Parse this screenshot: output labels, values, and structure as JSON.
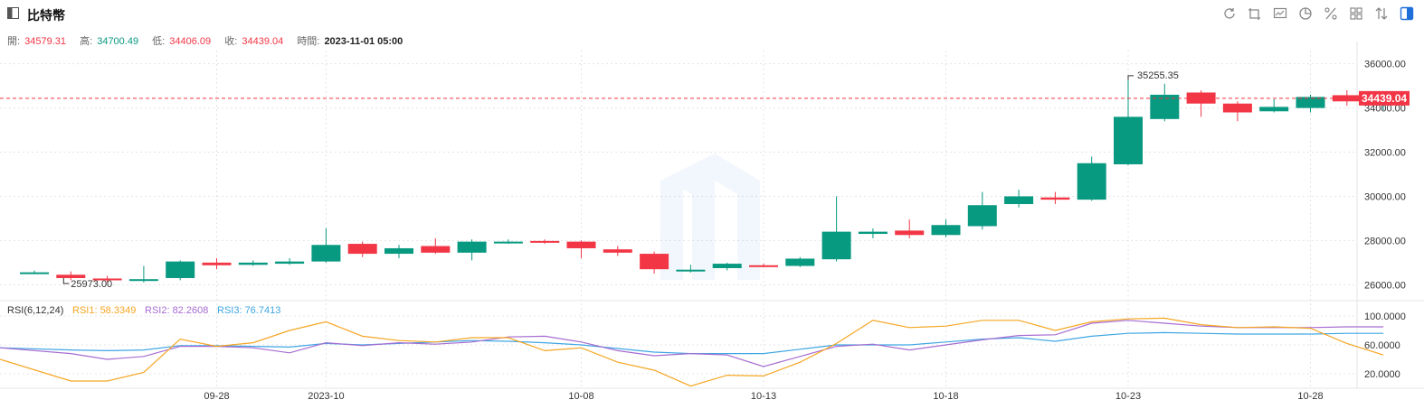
{
  "header": {
    "title": "比特幣",
    "toolbar_icons": [
      "refresh-icon",
      "crop-icon",
      "chart-type-icon",
      "pie-icon",
      "percent-icon",
      "layout-icon",
      "compare-icon",
      "panel-icon"
    ]
  },
  "ohlc": {
    "open_label": "開:",
    "open": "34579.31",
    "high_label": "高:",
    "high": "34700.49",
    "low_label": "低:",
    "low": "34406.09",
    "close_label": "收:",
    "close": "34439.04",
    "time_label": "時間:",
    "time": "2023-11-01 05:00"
  },
  "colors": {
    "up": "#089981",
    "down": "#f23645",
    "rsi1": "#f5a623",
    "rsi2": "#a76cd1",
    "rsi3": "#3fa6e3"
  },
  "chart_data": {
    "type": "candlestick",
    "price_axis": {
      "ticks": [
        "36000.00",
        "34000.00",
        "32000.00",
        "30000.00",
        "28000.00",
        "26000.00"
      ],
      "range": [
        25400,
        36600
      ]
    },
    "current_price_label": "34439.04",
    "max_annotation": "35255.35",
    "min_annotation": "25973.00",
    "x_ticks": [
      "09-28",
      "2023-10",
      "10-08",
      "10-13",
      "10-18",
      "10-23",
      "10-28"
    ],
    "candles": [
      {
        "date": "09-23",
        "o": 26560,
        "h": 26640,
        "l": 26480,
        "c": 26560
      },
      {
        "date": "09-24",
        "o": 26450,
        "h": 26600,
        "l": 26200,
        "c": 26300
      },
      {
        "date": "09-25",
        "o": 26280,
        "h": 26400,
        "l": 26100,
        "c": 26200
      },
      {
        "date": "09-26",
        "o": 26200,
        "h": 26850,
        "l": 26100,
        "c": 26250
      },
      {
        "date": "09-27",
        "o": 26300,
        "h": 27100,
        "l": 26200,
        "c": 27050
      },
      {
        "date": "09-28",
        "o": 27000,
        "h": 27200,
        "l": 26700,
        "c": 26880
      },
      {
        "date": "09-29",
        "o": 26900,
        "h": 27100,
        "l": 26850,
        "c": 27000
      },
      {
        "date": "09-30",
        "o": 26950,
        "h": 27200,
        "l": 26900,
        "c": 27050
      },
      {
        "date": "10-01",
        "o": 27050,
        "h": 28550,
        "l": 27000,
        "c": 27800
      },
      {
        "date": "10-02",
        "o": 27850,
        "h": 27950,
        "l": 27250,
        "c": 27400
      },
      {
        "date": "10-03",
        "o": 27400,
        "h": 27800,
        "l": 27200,
        "c": 27650
      },
      {
        "date": "10-04",
        "o": 27750,
        "h": 28100,
        "l": 27400,
        "c": 27450
      },
      {
        "date": "10-05",
        "o": 27450,
        "h": 28050,
        "l": 27100,
        "c": 27950
      },
      {
        "date": "10-06",
        "o": 27900,
        "h": 28050,
        "l": 27850,
        "c": 27950
      },
      {
        "date": "10-07",
        "o": 27980,
        "h": 28050,
        "l": 27850,
        "c": 27900
      },
      {
        "date": "10-08",
        "o": 27950,
        "h": 28000,
        "l": 27200,
        "c": 27650
      },
      {
        "date": "10-09",
        "o": 27600,
        "h": 27750,
        "l": 27300,
        "c": 27450
      },
      {
        "date": "10-10",
        "o": 27400,
        "h": 27500,
        "l": 26500,
        "c": 26700
      },
      {
        "date": "10-11",
        "o": 26650,
        "h": 26900,
        "l": 26550,
        "c": 26680
      },
      {
        "date": "10-12",
        "o": 26750,
        "h": 27000,
        "l": 26650,
        "c": 26950
      },
      {
        "date": "10-13",
        "o": 26880,
        "h": 26950,
        "l": 26800,
        "c": 26820
      },
      {
        "date": "10-14",
        "o": 26850,
        "h": 27250,
        "l": 26800,
        "c": 27180
      },
      {
        "date": "10-15",
        "o": 27150,
        "h": 30000,
        "l": 27050,
        "c": 28400
      },
      {
        "date": "10-16",
        "o": 28300,
        "h": 28550,
        "l": 28100,
        "c": 28400
      },
      {
        "date": "10-17",
        "o": 28450,
        "h": 28950,
        "l": 28100,
        "c": 28250
      },
      {
        "date": "10-18",
        "o": 28250,
        "h": 28950,
        "l": 28150,
        "c": 28700
      },
      {
        "date": "10-19",
        "o": 28650,
        "h": 30200,
        "l": 28500,
        "c": 29600
      },
      {
        "date": "10-20",
        "o": 29650,
        "h": 30300,
        "l": 29500,
        "c": 30000
      },
      {
        "date": "10-21",
        "o": 29950,
        "h": 30200,
        "l": 29650,
        "c": 29850
      },
      {
        "date": "10-22",
        "o": 29850,
        "h": 31800,
        "l": 29800,
        "c": 31500
      },
      {
        "date": "10-23",
        "o": 31450,
        "h": 35255.35,
        "l": 31400,
        "c": 33600
      },
      {
        "date": "10-24",
        "o": 33500,
        "h": 35100,
        "l": 33400,
        "c": 34600
      },
      {
        "date": "10-25",
        "o": 34700,
        "h": 34800,
        "l": 33600,
        "c": 34200
      },
      {
        "date": "10-26",
        "o": 34200,
        "h": 34300,
        "l": 33400,
        "c": 33800
      },
      {
        "date": "10-27",
        "o": 33850,
        "h": 34400,
        "l": 33800,
        "c": 34050
      },
      {
        "date": "10-28",
        "o": 34000,
        "h": 34600,
        "l": 33800,
        "c": 34500
      },
      {
        "date": "10-29",
        "o": 34579.31,
        "h": 34800,
        "l": 34100,
        "c": 34300
      },
      {
        "date": "10-30",
        "o": 34300,
        "h": 34650,
        "l": 33900,
        "c": 34500
      }
    ],
    "rsi": {
      "label": "RSI(6,12,24)",
      "rsi1_label": "RSI1: 58.3349",
      "rsi2_label": "RSI2: 82.2608",
      "rsi3_label": "RSI3: 76.7413",
      "axis_ticks": [
        "100.0000",
        "60.0000",
        "20.0000"
      ],
      "range": [
        0,
        120
      ],
      "rsi1": [
        40,
        10,
        10,
        22,
        68,
        58,
        63,
        80,
        92,
        72,
        66,
        64,
        70,
        70,
        52,
        56,
        36,
        25,
        3,
        18,
        17,
        36,
        62,
        94,
        84,
        86,
        94,
        94,
        80,
        92,
        96,
        97,
        88,
        84,
        85,
        83,
        62,
        46
      ],
      "rsi2": [
        56,
        48,
        40,
        44,
        58,
        58,
        56,
        49,
        63,
        59,
        63,
        61,
        64,
        71,
        72,
        64,
        52,
        45,
        48,
        46,
        30,
        44,
        58,
        61,
        53,
        60,
        67,
        73,
        74,
        90,
        94,
        90,
        86,
        84,
        84,
        84,
        85,
        85
      ],
      "rsi3": [
        56,
        53,
        52,
        53,
        59,
        59,
        58,
        57,
        62,
        60,
        62,
        64,
        66,
        65,
        63,
        60,
        55,
        50,
        48,
        48,
        48,
        54,
        60,
        60,
        60,
        64,
        68,
        70,
        65,
        72,
        76,
        77,
        76,
        75,
        75,
        75,
        76,
        76
      ]
    }
  }
}
